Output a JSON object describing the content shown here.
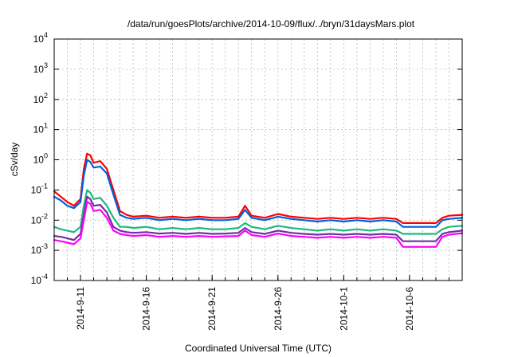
{
  "chart_data": {
    "type": "line",
    "title": "/data/run/goesPlots/archive/2014-10-09/flux/../bryn/31daysMars.plot",
    "xlabel": "Coordinated Universal Time (UTC)",
    "ylabel": "cSv/day",
    "yscale": "log",
    "ylim": [
      0.0001,
      10000
    ],
    "xlim": [
      "2014-09-09",
      "2014-10-10"
    ],
    "grid": true,
    "x_ticks": [
      "2014-9-11",
      "2014-9-16",
      "2014-9-21",
      "2014-9-26",
      "2014-10-1",
      "2014-10-6"
    ],
    "y_ticks": [
      {
        "value": 0.0001,
        "base": "10",
        "exp": "-4"
      },
      {
        "value": 0.001,
        "base": "10",
        "exp": "-3"
      },
      {
        "value": 0.01,
        "base": "10",
        "exp": "-2"
      },
      {
        "value": 0.1,
        "base": "10",
        "exp": "-1"
      },
      {
        "value": 1,
        "base": "10",
        "exp": "0"
      },
      {
        "value": 10,
        "base": "10",
        "exp": "1"
      },
      {
        "value": 100,
        "base": "10",
        "exp": "2"
      },
      {
        "value": 1000,
        "base": "10",
        "exp": "3"
      },
      {
        "value": 10000,
        "base": "10",
        "exp": "4"
      }
    ],
    "x": [
      "2014-09-09",
      "2014-09-09 12:00",
      "2014-09-10",
      "2014-09-10 12:00",
      "2014-09-11",
      "2014-09-11 06:00",
      "2014-09-11 12:00",
      "2014-09-11 18:00",
      "2014-09-12",
      "2014-09-12 12:00",
      "2014-09-13",
      "2014-09-13 12:00",
      "2014-09-14",
      "2014-09-14 12:00",
      "2014-09-15",
      "2014-09-16",
      "2014-09-17",
      "2014-09-18",
      "2014-09-19",
      "2014-09-20",
      "2014-09-21",
      "2014-09-22",
      "2014-09-23",
      "2014-09-23 12:00",
      "2014-09-24",
      "2014-09-25",
      "2014-09-26",
      "2014-09-27",
      "2014-09-28",
      "2014-09-29",
      "2014-09-30",
      "2014-10-01",
      "2014-10-02",
      "2014-10-03",
      "2014-10-04",
      "2014-10-05",
      "2014-10-05 12:00",
      "2014-10-06",
      "2014-10-07",
      "2014-10-08",
      "2014-10-08 12:00",
      "2014-10-09",
      "2014-10-10"
    ],
    "series": [
      {
        "color": "#ff0000",
        "values": [
          0.09,
          0.06,
          0.04,
          0.03,
          0.05,
          0.5,
          1.6,
          1.4,
          0.8,
          0.9,
          0.5,
          0.1,
          0.02,
          0.015,
          0.013,
          0.014,
          0.012,
          0.013,
          0.012,
          0.013,
          0.012,
          0.012,
          0.013,
          0.03,
          0.014,
          0.012,
          0.016,
          0.013,
          0.012,
          0.011,
          0.012,
          0.011,
          0.012,
          0.011,
          0.012,
          0.011,
          0.008,
          0.008,
          0.008,
          0.008,
          0.012,
          0.014,
          0.015
        ]
      },
      {
        "color": "#0060e0",
        "values": [
          0.06,
          0.045,
          0.03,
          0.025,
          0.04,
          0.3,
          1.0,
          0.85,
          0.55,
          0.6,
          0.35,
          0.07,
          0.015,
          0.012,
          0.011,
          0.012,
          0.01,
          0.011,
          0.01,
          0.011,
          0.01,
          0.01,
          0.011,
          0.022,
          0.012,
          0.01,
          0.013,
          0.011,
          0.01,
          0.009,
          0.01,
          0.009,
          0.01,
          0.009,
          0.01,
          0.009,
          0.006,
          0.006,
          0.006,
          0.006,
          0.01,
          0.011,
          0.012
        ]
      },
      {
        "color": "#20b880",
        "values": [
          0.006,
          0.005,
          0.0045,
          0.004,
          0.006,
          0.03,
          0.1,
          0.08,
          0.05,
          0.055,
          0.03,
          0.012,
          0.006,
          0.006,
          0.0055,
          0.006,
          0.005,
          0.0055,
          0.005,
          0.0055,
          0.005,
          0.005,
          0.0055,
          0.008,
          0.006,
          0.005,
          0.0065,
          0.0055,
          0.005,
          0.0045,
          0.005,
          0.0045,
          0.005,
          0.0045,
          0.005,
          0.0045,
          0.0035,
          0.0035,
          0.0035,
          0.0035,
          0.005,
          0.006,
          0.0065
        ]
      },
      {
        "color": "#7030a0",
        "values": [
          0.003,
          0.0028,
          0.0025,
          0.0022,
          0.0035,
          0.015,
          0.06,
          0.05,
          0.03,
          0.032,
          0.018,
          0.006,
          0.0045,
          0.004,
          0.0038,
          0.004,
          0.0036,
          0.0038,
          0.0035,
          0.0038,
          0.0035,
          0.0036,
          0.0038,
          0.0055,
          0.004,
          0.0035,
          0.0045,
          0.0038,
          0.0035,
          0.0033,
          0.0035,
          0.0033,
          0.0035,
          0.0033,
          0.0035,
          0.0033,
          0.002,
          0.002,
          0.002,
          0.002,
          0.0035,
          0.004,
          0.0045
        ]
      },
      {
        "color": "#ff00ff",
        "values": [
          0.0022,
          0.002,
          0.0018,
          0.0016,
          0.0025,
          0.01,
          0.04,
          0.035,
          0.02,
          0.022,
          0.012,
          0.0045,
          0.0035,
          0.0032,
          0.003,
          0.0032,
          0.0028,
          0.003,
          0.0028,
          0.003,
          0.0028,
          0.0029,
          0.003,
          0.0045,
          0.0032,
          0.0028,
          0.0036,
          0.003,
          0.0028,
          0.0026,
          0.0028,
          0.0026,
          0.0028,
          0.0026,
          0.0028,
          0.0026,
          0.0013,
          0.0013,
          0.0013,
          0.0013,
          0.0028,
          0.0033,
          0.0037
        ]
      }
    ]
  }
}
